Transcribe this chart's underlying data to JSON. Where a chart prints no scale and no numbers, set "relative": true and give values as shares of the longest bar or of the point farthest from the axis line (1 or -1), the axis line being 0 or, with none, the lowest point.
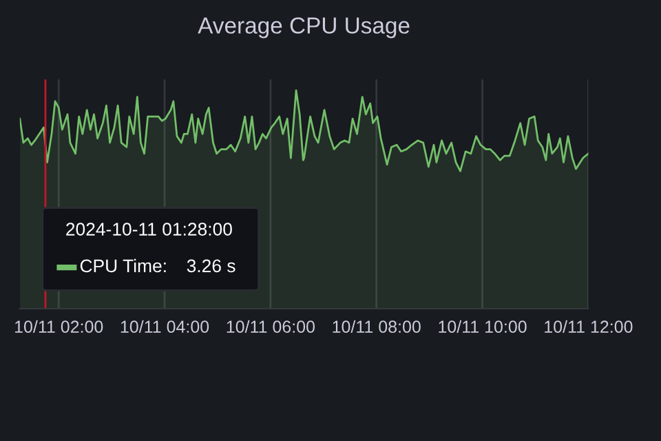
{
  "chart_data": {
    "type": "area",
    "title": "Average CPU Usage",
    "relative": true,
    "legend_title": "2024-10-11 01:28:00",
    "legend": "bottom left",
    "grid": "x",
    "xlim": [
      "2024-10-11T01:16",
      "2024-10-11T12:00"
    ],
    "xticks": [
      {
        "value": "2024-10-11T02:00",
        "label": "10/11 02:00"
      },
      {
        "value": "2024-10-11T04:00",
        "label": "10/11 04:00"
      },
      {
        "value": "2024-10-11T06:00",
        "label": "10/11 06:00"
      },
      {
        "value": "2024-10-11T08:00",
        "label": "10/11 08:00"
      },
      {
        "value": "2024-10-11T10:00",
        "label": "10/11 10:00"
      },
      {
        "value": "2024-10-11T12:00",
        "label": "10/11 12:00"
      }
    ],
    "annotations": [
      "3.26 s"
    ],
    "ref_lines": [
      {
        "axis": "x",
        "value": "2024-10-11T01:45",
        "label": null,
        "color": "#c4162a"
      }
    ],
    "series": [
      {
        "name": "CPU Time:",
        "color": "#73bf69",
        "x": [
          "2024-10-11T01:16",
          "2024-10-11T01:20",
          "2024-10-11T01:25",
          "2024-10-11T01:29",
          "2024-10-11T01:33",
          "2024-10-11T01:38",
          "2024-10-11T01:43",
          "2024-10-11T01:47",
          "2024-10-11T01:52",
          "2024-10-11T01:56",
          "2024-10-11T02:00",
          "2024-10-11T02:04",
          "2024-10-11T02:10",
          "2024-10-11T02:13",
          "2024-10-11T02:19",
          "2024-10-11T02:23",
          "2024-10-11T02:27",
          "2024-10-11T02:32",
          "2024-10-11T02:36",
          "2024-10-11T02:40",
          "2024-10-11T02:44",
          "2024-10-11T02:50",
          "2024-10-11T02:54",
          "2024-10-11T02:58",
          "2024-10-11T03:03",
          "2024-10-11T03:07",
          "2024-10-11T03:11",
          "2024-10-11T03:17",
          "2024-10-11T03:20",
          "2024-10-11T03:25",
          "2024-10-11T03:29",
          "2024-10-11T03:33",
          "2024-10-11T03:37",
          "2024-10-11T03:41",
          "2024-10-11T03:45",
          "2024-10-11T03:49",
          "2024-10-11T03:53",
          "2024-10-11T03:57",
          "2024-10-11T04:01",
          "2024-10-11T04:07",
          "2024-10-11T04:10",
          "2024-10-11T04:14",
          "2024-10-11T04:19",
          "2024-10-11T04:22",
          "2024-10-11T04:26",
          "2024-10-11T04:31",
          "2024-10-11T04:35",
          "2024-10-11T04:38",
          "2024-10-11T04:43",
          "2024-10-11T04:47",
          "2024-10-11T04:50",
          "2024-10-11T04:55",
          "2024-10-11T04:59",
          "2024-10-11T05:04",
          "2024-10-11T05:10",
          "2024-10-11T05:15",
          "2024-10-11T05:20",
          "2024-10-11T05:26",
          "2024-10-11T05:31",
          "2024-10-11T05:35",
          "2024-10-11T05:39",
          "2024-10-11T05:43",
          "2024-10-11T05:47",
          "2024-10-11T05:51",
          "2024-10-11T05:55",
          "2024-10-11T06:01",
          "2024-10-11T06:05",
          "2024-10-11T06:10",
          "2024-10-11T06:14",
          "2024-10-11T06:19",
          "2024-10-11T06:23",
          "2024-10-11T06:29",
          "2024-10-11T06:33",
          "2024-10-11T06:37",
          "2024-10-11T06:38",
          "2024-10-11T06:45",
          "2024-10-11T06:50",
          "2024-10-11T06:54",
          "2024-10-11T07:01",
          "2024-10-11T07:07",
          "2024-10-11T07:12",
          "2024-10-11T07:19",
          "2024-10-11T07:24",
          "2024-10-11T07:29",
          "2024-10-11T07:33",
          "2024-10-11T07:38",
          "2024-10-11T07:44",
          "2024-10-11T07:48",
          "2024-10-11T07:53",
          "2024-10-11T07:56",
          "2024-10-11T08:01",
          "2024-10-11T08:05",
          "2024-10-11T08:12",
          "2024-10-11T08:17",
          "2024-10-11T08:23",
          "2024-10-11T08:28",
          "2024-10-11T08:34",
          "2024-10-11T08:40",
          "2024-10-11T08:47",
          "2024-10-11T08:53",
          "2024-10-11T08:59",
          "2024-10-11T09:05",
          "2024-10-11T09:08",
          "2024-10-11T09:14",
          "2024-10-11T09:19",
          "2024-10-11T09:25",
          "2024-10-11T09:30",
          "2024-10-11T09:35",
          "2024-10-11T09:41",
          "2024-10-11T09:47",
          "2024-10-11T09:53",
          "2024-10-11T09:58",
          "2024-10-11T10:04",
          "2024-10-11T10:09",
          "2024-10-11T10:14",
          "2024-10-11T10:20",
          "2024-10-11T10:25",
          "2024-10-11T10:31",
          "2024-10-11T10:37",
          "2024-10-11T10:43",
          "2024-10-11T10:48",
          "2024-10-11T10:53",
          "2024-10-11T10:59",
          "2024-10-11T11:03",
          "2024-10-11T11:08",
          "2024-10-11T11:12",
          "2024-10-11T11:15",
          "2024-10-11T11:19",
          "2024-10-11T11:25",
          "2024-10-11T11:28",
          "2024-10-11T11:32",
          "2024-10-11T11:37",
          "2024-10-11T11:42",
          "2024-10-11T11:46",
          "2024-10-11T11:54",
          "2024-10-11T12:00"
        ],
        "values": [
          0.87,
          0.76,
          0.78,
          0.75,
          0.77,
          0.8,
          0.83,
          0.67,
          0.8,
          0.95,
          0.92,
          0.82,
          0.89,
          0.76,
          0.71,
          0.88,
          0.8,
          0.91,
          0.82,
          0.89,
          0.78,
          0.85,
          0.93,
          0.76,
          0.83,
          0.93,
          0.76,
          0.74,
          0.88,
          0.8,
          0.97,
          0.76,
          0.71,
          0.88,
          0.88,
          0.88,
          0.88,
          0.86,
          0.87,
          0.91,
          0.95,
          0.79,
          0.76,
          0.8,
          0.8,
          0.89,
          0.76,
          0.87,
          0.8,
          0.89,
          0.92,
          0.76,
          0.71,
          0.73,
          0.73,
          0.75,
          0.72,
          0.78,
          0.88,
          0.76,
          0.88,
          0.73,
          0.76,
          0.8,
          0.78,
          0.83,
          0.85,
          0.88,
          0.8,
          0.87,
          0.69,
          1.0,
          0.89,
          0.68,
          0.69,
          0.88,
          0.79,
          0.76,
          0.91,
          0.79,
          0.73,
          0.76,
          0.77,
          0.76,
          0.87,
          0.8,
          0.97,
          0.89,
          0.94,
          0.85,
          0.88,
          0.78,
          0.66,
          0.74,
          0.75,
          0.72,
          0.73,
          0.75,
          0.77,
          0.76,
          0.65,
          0.75,
          0.67,
          0.77,
          0.71,
          0.76,
          0.67,
          0.63,
          0.72,
          0.71,
          0.79,
          0.75,
          0.73,
          0.73,
          0.71,
          0.68,
          0.7,
          0.7,
          0.77,
          0.85,
          0.75,
          0.87,
          0.88,
          0.77,
          0.74,
          0.68,
          0.8,
          0.71,
          0.74,
          0.78,
          0.67,
          0.79,
          0.69,
          0.64,
          0.69,
          0.71
        ]
      }
    ]
  }
}
